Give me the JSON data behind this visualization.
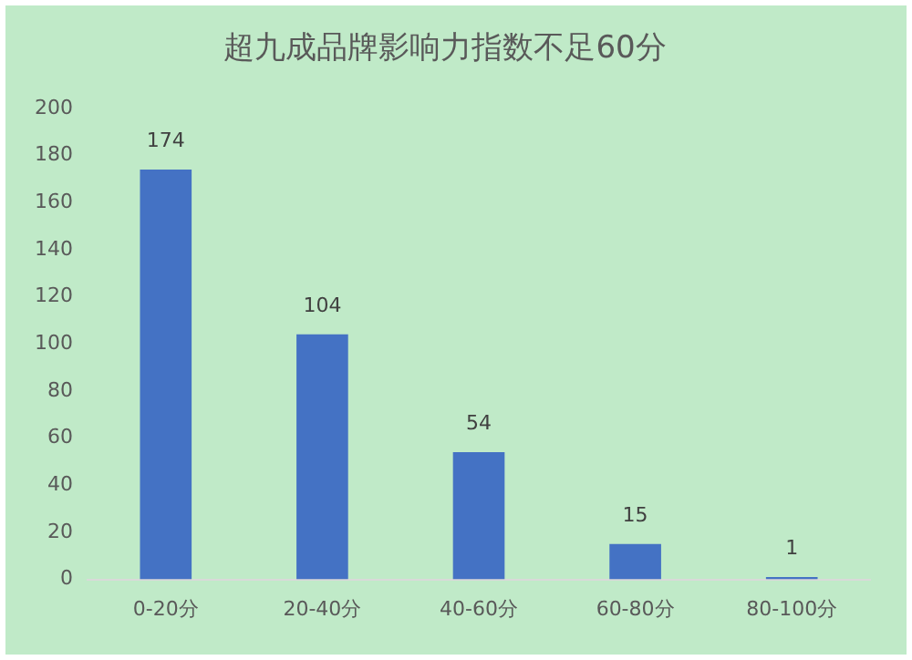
{
  "chart_data": {
    "type": "bar",
    "title": "超九成品牌影响力指数不足60分",
    "categories": [
      "0-20分",
      "20-40分",
      "40-60分",
      "60-80分",
      "80-100分"
    ],
    "values": [
      174,
      104,
      54,
      15,
      1
    ],
    "color": "#4472c4",
    "ylim": [
      0,
      200
    ],
    "yticks": [
      0,
      20,
      40,
      60,
      80,
      100,
      120,
      140,
      160,
      180,
      200
    ],
    "grid": false,
    "data_labels": true
  }
}
